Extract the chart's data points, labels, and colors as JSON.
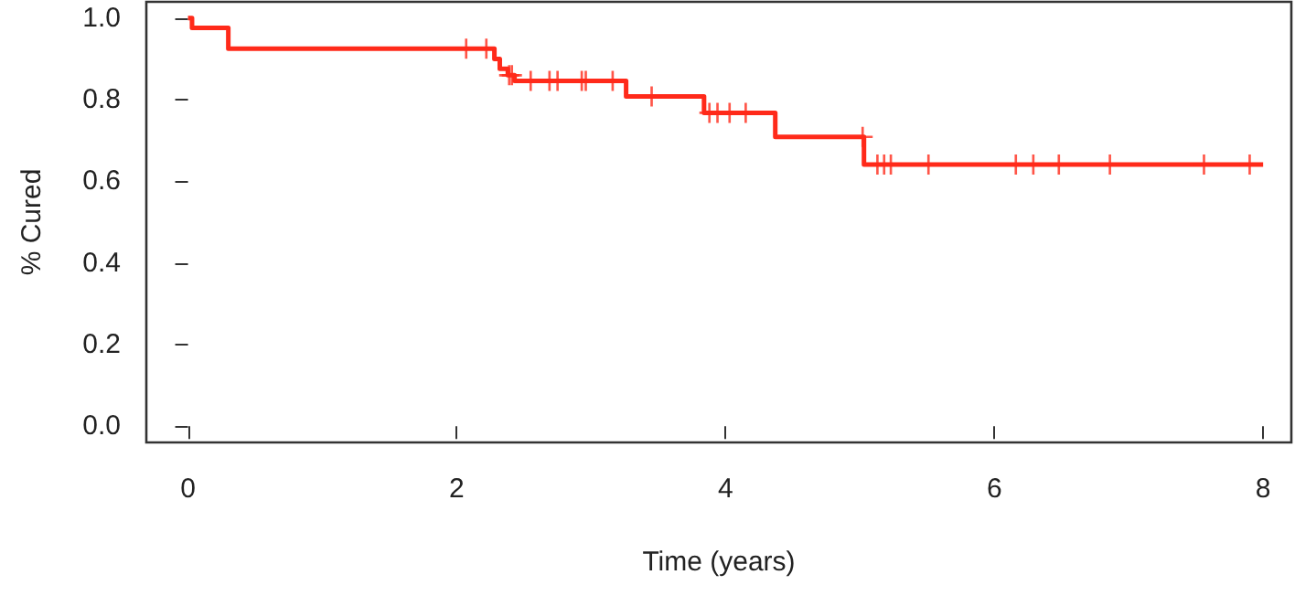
{
  "chart_data": {
    "type": "step",
    "xlabel": "Time (years)",
    "ylabel": "% Cured",
    "xlim": [
      -0.31,
      8.21
    ],
    "xticks": [
      0,
      2,
      4,
      6,
      8
    ],
    "ylim": [
      -0.04,
      1.04
    ],
    "yticks": [
      {
        "value": 0,
        "label": "0.0"
      },
      {
        "value": 0.2,
        "label": "0.2"
      },
      {
        "value": 0.4,
        "label": "0.4"
      },
      {
        "value": 0.6,
        "label": "0.6"
      },
      {
        "value": 0.8,
        "label": "0.8"
      },
      {
        "value": 1,
        "label": "1.0"
      }
    ],
    "grid": false,
    "series": [
      {
        "type": "step",
        "color": "#ff2a1a",
        "marker": "none",
        "x": [
          0,
          0.03,
          0.3,
          2.28,
          2.32,
          2.38,
          2.43,
          3.26,
          3.84,
          4.37,
          5.03,
          8.0
        ],
        "values": [
          1,
          0.976,
          0.925,
          0.9,
          0.876,
          0.86,
          0.846,
          0.808,
          0.768,
          0.709,
          0.641,
          0.641
        ]
      },
      {
        "type": "scatter",
        "color": "#ff2a1a",
        "marker": "cross",
        "x": [
          2.07,
          2.22,
          2.39,
          2.41,
          2.55,
          2.69,
          2.75,
          2.93,
          2.96,
          3.16,
          3.45,
          3.88,
          3.94,
          4.03,
          4.15,
          5.02,
          5.13,
          5.18,
          5.23,
          5.51,
          6.16,
          6.29,
          6.48,
          6.86,
          7.56,
          7.9
        ],
        "values": [
          0.925,
          0.925,
          0.86,
          0.86,
          0.846,
          0.846,
          0.846,
          0.846,
          0.846,
          0.846,
          0.808,
          0.768,
          0.768,
          0.768,
          0.768,
          0.709,
          0.641,
          0.641,
          0.641,
          0.641,
          0.641,
          0.641,
          0.641,
          0.641,
          0.641,
          0.641
        ]
      }
    ]
  }
}
